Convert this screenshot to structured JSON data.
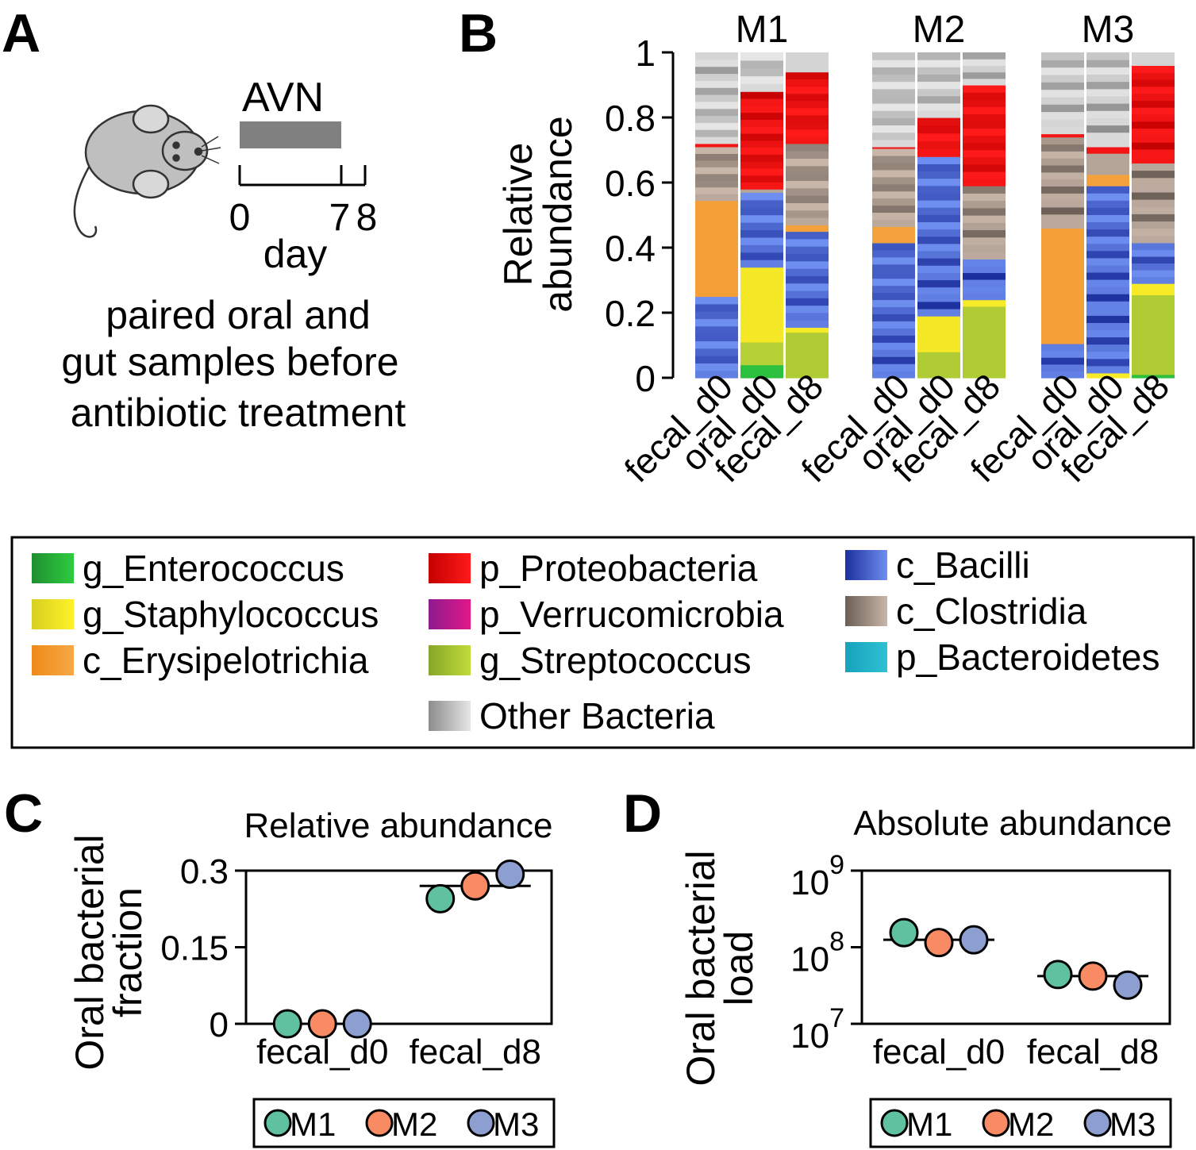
{
  "panel_letters": [
    "A",
    "B",
    "C",
    "D"
  ],
  "panel_a": {
    "treatment_label": "AVN",
    "timeline_ticks": [
      "0",
      "7",
      "8"
    ],
    "timeline_unit": "day",
    "caption_lines": [
      "paired oral and",
      "gut samples before",
      "antibiotic treatment"
    ]
  },
  "colors": {
    "g_Enterococcus": [
      "#1f8f2f",
      "#2ecc40"
    ],
    "g_Staphylococcus": [
      "#d9cf1f",
      "#fff22a"
    ],
    "c_Erysipelotrichia": [
      "#f08a1a",
      "#f5a845"
    ],
    "p_Proteobacteria": [
      "#c40000",
      "#ff1a1a"
    ],
    "p_Verrucomicrobia": [
      "#8e1a8e",
      "#e0188a"
    ],
    "g_Streptococcus": [
      "#88a52a",
      "#c0dc3a"
    ],
    "c_Bacilli": [
      "#1c2f9e",
      "#6e8ef0"
    ],
    "c_Clostridia": [
      "#6a5e56",
      "#c8b6a8"
    ],
    "p_Bacteroidetes": [
      "#17a3bb",
      "#2fc0d5"
    ],
    "Other Bacteria": [
      "#8c8c8c",
      "#e6e6e6"
    ],
    "M1": "#5fc1a0",
    "M2": "#f88a64",
    "M3": "#8d9ed0"
  },
  "legend": {
    "columns": [
      [
        "g_Enterococcus",
        "g_Staphylococcus",
        "c_Erysipelotrichia"
      ],
      [
        "p_Proteobacteria",
        "p_Verrucomicrobia",
        "g_Streptococcus",
        "Other Bacteria"
      ],
      [
        "c_Bacilli",
        "c_Clostridia",
        "p_Bacteroidetes"
      ]
    ]
  },
  "chart_data": [
    {
      "panel": "B",
      "type": "bar",
      "stacked": true,
      "ylabel": [
        "Relative",
        "abundance"
      ],
      "ylim": [
        0,
        1
      ],
      "yticks": [
        0,
        0.2,
        0.4,
        0.6,
        0.8,
        1
      ],
      "ytick_labels": [
        "0",
        "0.2",
        "0.4",
        "0.6",
        "0.8",
        "1"
      ],
      "groups": [
        "M1",
        "M2",
        "M3"
      ],
      "categories": [
        "fecal_d0",
        "oral_d0",
        "fecal_d8"
      ],
      "stack_order": [
        "g_Enterococcus",
        "g_Streptococcus",
        "g_Staphylococcus",
        "c_Bacilli",
        "c_Erysipelotrichia",
        "c_Clostridia",
        "p_Proteobacteria",
        "Other Bacteria"
      ],
      "bars": [
        {
          "group": "M1",
          "sample": "fecal_d0",
          "g_Enterococcus": 0,
          "g_Streptococcus": 0,
          "g_Staphylococcus": 0,
          "c_Bacilli": 0.25,
          "c_Erysipelotrichia": 0.295,
          "c_Clostridia": 0.165,
          "p_Proteobacteria": 0.01,
          "Other Bacteria": 0.28
        },
        {
          "group": "M1",
          "sample": "oral_d0",
          "g_Enterococcus": 0.04,
          "g_Streptococcus": 0.07,
          "g_Staphylococcus": 0.23,
          "c_Bacilli": 0.23,
          "c_Erysipelotrichia": 0,
          "c_Clostridia": 0.01,
          "p_Proteobacteria": 0.3,
          "Other Bacteria": 0.12
        },
        {
          "group": "M1",
          "sample": "fecal_d8",
          "g_Enterococcus": 0,
          "g_Streptococcus": 0.14,
          "g_Staphylococcus": 0.015,
          "c_Bacilli": 0.295,
          "c_Erysipelotrichia": 0.02,
          "c_Clostridia": 0.25,
          "p_Proteobacteria": 0.22,
          "Other Bacteria": 0.06
        },
        {
          "group": "M2",
          "sample": "fecal_d0",
          "g_Enterococcus": 0,
          "g_Streptococcus": 0,
          "g_Staphylococcus": 0,
          "c_Bacilli": 0.415,
          "c_Erysipelotrichia": 0.05,
          "c_Clostridia": 0.24,
          "p_Proteobacteria": 0.005,
          "Other Bacteria": 0.29
        },
        {
          "group": "M2",
          "sample": "oral_d0",
          "g_Enterococcus": 0,
          "g_Streptococcus": 0.08,
          "g_Staphylococcus": 0.11,
          "c_Bacilli": 0.49,
          "c_Erysipelotrichia": 0,
          "c_Clostridia": 0.0,
          "p_Proteobacteria": 0.12,
          "Other Bacteria": 0.2
        },
        {
          "group": "M2",
          "sample": "fecal_d8",
          "g_Enterococcus": 0,
          "g_Streptococcus": 0.22,
          "g_Staphylococcus": 0.02,
          "c_Bacilli": 0.125,
          "c_Erysipelotrichia": 0,
          "c_Clostridia": 0.225,
          "p_Proteobacteria": 0.31,
          "Other Bacteria": 0.1
        },
        {
          "group": "M3",
          "sample": "fecal_d0",
          "g_Enterococcus": 0,
          "g_Streptococcus": 0,
          "g_Staphylococcus": 0,
          "c_Bacilli": 0.105,
          "c_Erysipelotrichia": 0.355,
          "c_Clostridia": 0.28,
          "p_Proteobacteria": 0.01,
          "Other Bacteria": 0.25
        },
        {
          "group": "M3",
          "sample": "oral_d0",
          "g_Enterococcus": 0,
          "g_Streptococcus": 0,
          "g_Staphylococcus": 0.015,
          "c_Bacilli": 0.575,
          "c_Erysipelotrichia": 0.035,
          "c_Clostridia": 0.065,
          "p_Proteobacteria": 0.02,
          "Other Bacteria": 0.29
        },
        {
          "group": "M3",
          "sample": "fecal_d8",
          "g_Enterococcus": 0.01,
          "g_Streptococcus": 0.245,
          "g_Staphylococcus": 0.035,
          "c_Bacilli": 0.125,
          "c_Erysipelotrichia": 0,
          "c_Clostridia": 0.245,
          "p_Proteobacteria": 0.3,
          "Other Bacteria": 0.04
        }
      ]
    },
    {
      "panel": "C",
      "type": "scatter",
      "title": "Relative abundance",
      "ylabel": [
        "Oral bacterial",
        "fraction"
      ],
      "ylim": [
        0,
        0.3
      ],
      "yticks": [
        0,
        0.15,
        0.3
      ],
      "ytick_labels": [
        "0",
        "0.15",
        "0.3"
      ],
      "categories": [
        "fecal_d0",
        "fecal_d8"
      ],
      "series": [
        {
          "name": "M1",
          "values": [
            0.0,
            0.245
          ]
        },
        {
          "name": "M2",
          "values": [
            0.0,
            0.27
          ]
        },
        {
          "name": "M3",
          "values": [
            0.0,
            0.293
          ]
        }
      ],
      "medians": [
        0.0,
        0.27
      ],
      "legend_position": "bottom"
    },
    {
      "panel": "D",
      "type": "scatter",
      "title": "Absolute abundance",
      "ylabel": [
        "Oral bacterial",
        "load"
      ],
      "yscale": "log",
      "ylim": [
        10000000,
        1000000000
      ],
      "ytick_labels": [
        {
          "base": "10",
          "exp": "9"
        },
        {
          "base": "10",
          "exp": "8"
        },
        {
          "base": "10",
          "exp": "7"
        }
      ],
      "categories": [
        "fecal_d0",
        "fecal_d8"
      ],
      "series": [
        {
          "name": "M1",
          "values": [
            155000000,
            44000000
          ]
        },
        {
          "name": "M2",
          "values": [
            115000000,
            42000000
          ]
        },
        {
          "name": "M3",
          "values": [
            125000000,
            32000000
          ]
        }
      ],
      "medians": [
        125000000,
        42000000
      ],
      "legend_position": "bottom"
    }
  ]
}
